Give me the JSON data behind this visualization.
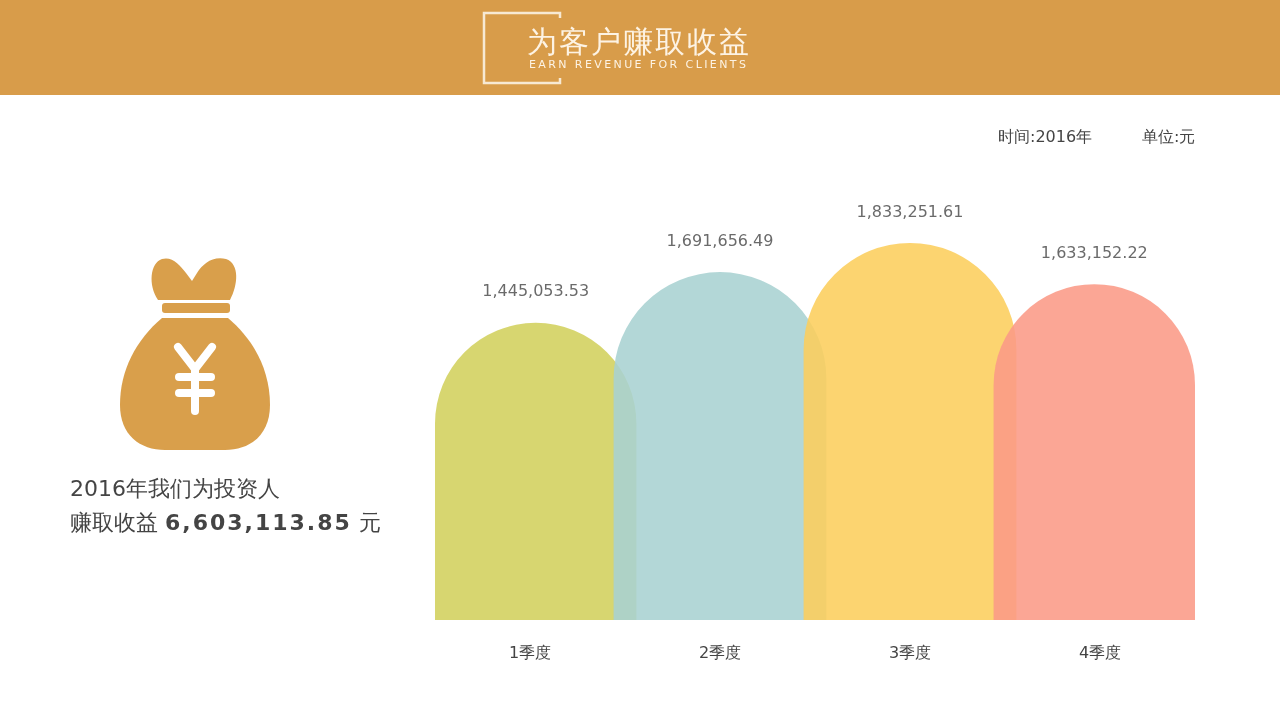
{
  "chart_data": {
    "type": "bar",
    "title": "为客户赚取收益",
    "subtitle": "EARN REVENUE FOR CLIENTS",
    "annotations": [
      "时间:2016年",
      "单位:元",
      "2016年我们为投资人",
      "赚取收益 6,603,113.85 元"
    ],
    "categories": [
      "1季度",
      "2季度",
      "3季度",
      "4季度"
    ],
    "values": [
      1445053.53,
      1691656.49,
      1833251.61,
      1633152.22
    ],
    "colors": [
      "#d2d05c",
      "#a8d2d1",
      "#fcce5c",
      "#fb9a86"
    ],
    "value_labels": [
      "1,445,053.53",
      "1,691,656.49",
      "1,833,251.61",
      "1,633,152.22"
    ]
  }
}
